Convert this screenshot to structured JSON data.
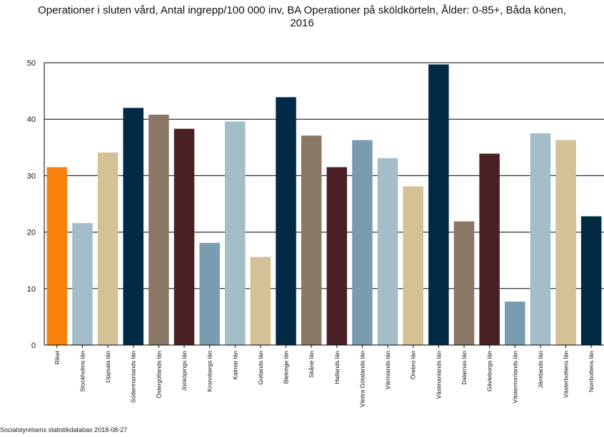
{
  "chart_data": {
    "type": "bar",
    "title_line1": "Operationer i sluten vård, Antal ingrepp/100 000 inv, BA Operationer på sköldkörteln, Ålder: 0-85+, Båda könen,",
    "title_line2": "2016",
    "source": "Socialstyrelsens statistikdatabas 2018-08-27",
    "ylim": [
      0,
      50
    ],
    "yticks": [
      0,
      10,
      20,
      30,
      40,
      50
    ],
    "grid": true,
    "categories": [
      "Riket",
      "Stockholms län",
      "Uppsala län",
      "Södermanlands län",
      "Östergötlands län",
      "Jönköpings län",
      "Kronobergs län",
      "Kalmar län",
      "Gotlands län",
      "Blekinge län",
      "Skåne län",
      "Hallands län",
      "Västra Götalands län",
      "Värmlands län",
      "Örebro län",
      "Västmanlands län",
      "Dalarnas län",
      "Gävleborgs län",
      "Västernorrlands län",
      "Jämtlands län",
      "Västerbottens län",
      "Norrbottens län"
    ],
    "values": [
      31.5,
      21.6,
      34.1,
      42.0,
      40.8,
      38.3,
      18.1,
      39.6,
      15.6,
      43.9,
      37.1,
      31.5,
      36.3,
      33.1,
      28.1,
      49.7,
      21.9,
      33.9,
      7.7,
      37.5,
      36.3,
      22.8
    ],
    "colors": [
      "#f5820b",
      "#a3bec8",
      "#d4c196",
      "#022a45",
      "#8b7765",
      "#4a2024",
      "#7a9cb0",
      "#a3bec8",
      "#d4c196",
      "#022a45",
      "#8b7765",
      "#4a2024",
      "#7a9cb0",
      "#a3bec8",
      "#d4c196",
      "#022a45",
      "#8b7765",
      "#4a2024",
      "#7a9cb0",
      "#a3bec8",
      "#d4c196",
      "#022a45"
    ]
  }
}
